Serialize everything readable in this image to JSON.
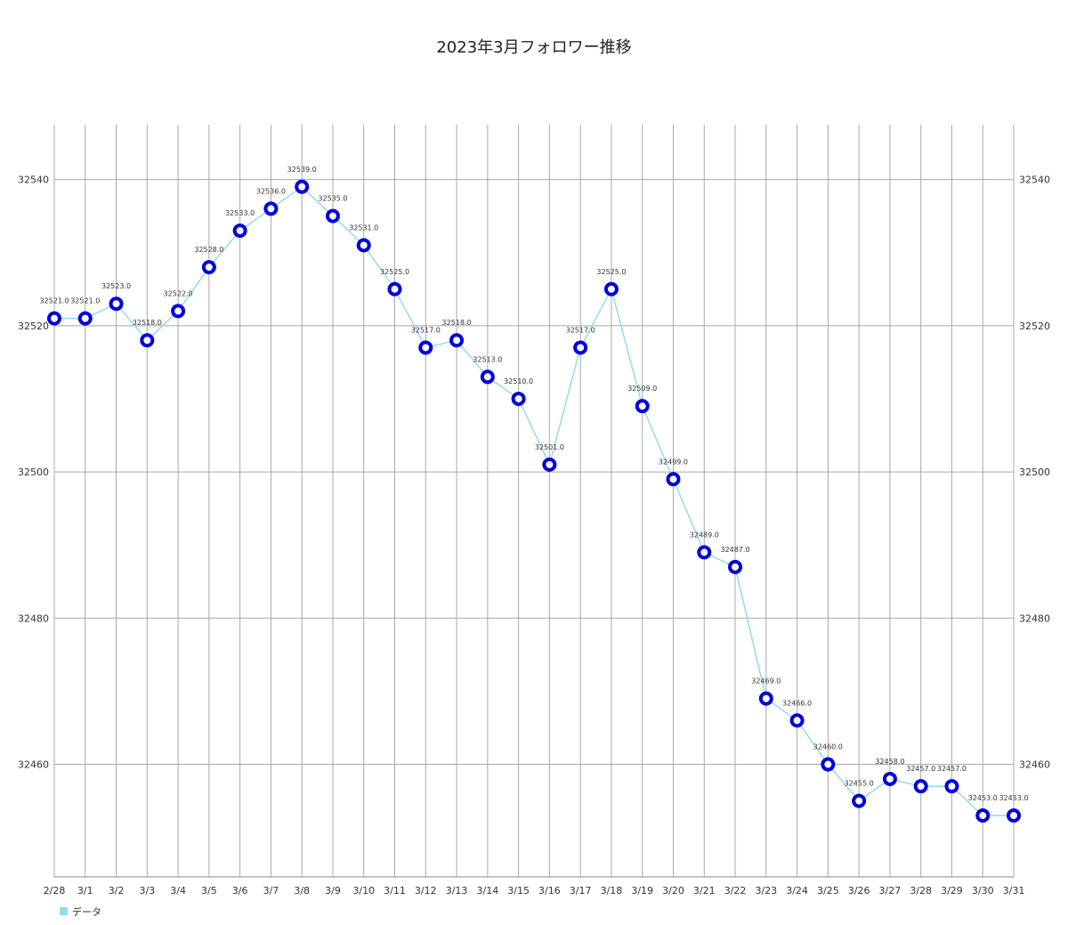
{
  "chart_data": {
    "type": "line",
    "title": "2023年3月フォロワー推移",
    "categories": [
      "2/28",
      "3/1",
      "3/2",
      "3/3",
      "3/4",
      "3/5",
      "3/6",
      "3/7",
      "3/8",
      "3/9",
      "3/10",
      "3/11",
      "3/12",
      "3/13",
      "3/14",
      "3/15",
      "3/16",
      "3/17",
      "3/18",
      "3/19",
      "3/20",
      "3/21",
      "3/22",
      "3/23",
      "3/24",
      "3/25",
      "3/26",
      "3/27",
      "3/28",
      "3/29",
      "3/30",
      "3/31"
    ],
    "series": [
      {
        "name": "データ",
        "values": [
          32521,
          32521,
          32523,
          32518,
          32522,
          32528,
          32533,
          32536,
          32539,
          32535,
          32531,
          32525,
          32517,
          32518,
          32513,
          32510,
          32501,
          32517,
          32525,
          32509,
          32499,
          32489,
          32487,
          32469,
          32466,
          32460,
          32455,
          32458,
          32457,
          32457,
          32453,
          32453
        ],
        "data_labels": [
          "32521.0",
          "32521.0",
          "32523.0",
          "32518.0",
          "32522.0",
          "32528.0",
          "32533.0",
          "32536.0",
          "32539.0",
          "32535.0",
          "32531.0",
          "32525.0",
          "32517.0",
          "32518.0",
          "32513.0",
          "32510.0",
          "32501.0",
          "32517.0",
          "32525.0",
          "32509.0",
          "32499.0",
          "32489.0",
          "32487.0",
          "32469.0",
          "32466.0",
          "32460.0",
          "32455.0",
          "32458.0",
          "32457.0",
          "32457.0",
          "32453.0",
          "32453.0"
        ]
      }
    ],
    "yticks": [
      32460,
      32480,
      32500,
      32520,
      32540
    ],
    "ylim": [
      32444.6,
      32547.5
    ],
    "grid": true,
    "legend_position": "bottom-left",
    "colors": {
      "line": "#8fdcf2",
      "marker_stroke": "#0000dd",
      "marker_fill": "#ffffff",
      "grid": "#a8a8a8",
      "legend_swatch": "#8fdcf2"
    }
  }
}
